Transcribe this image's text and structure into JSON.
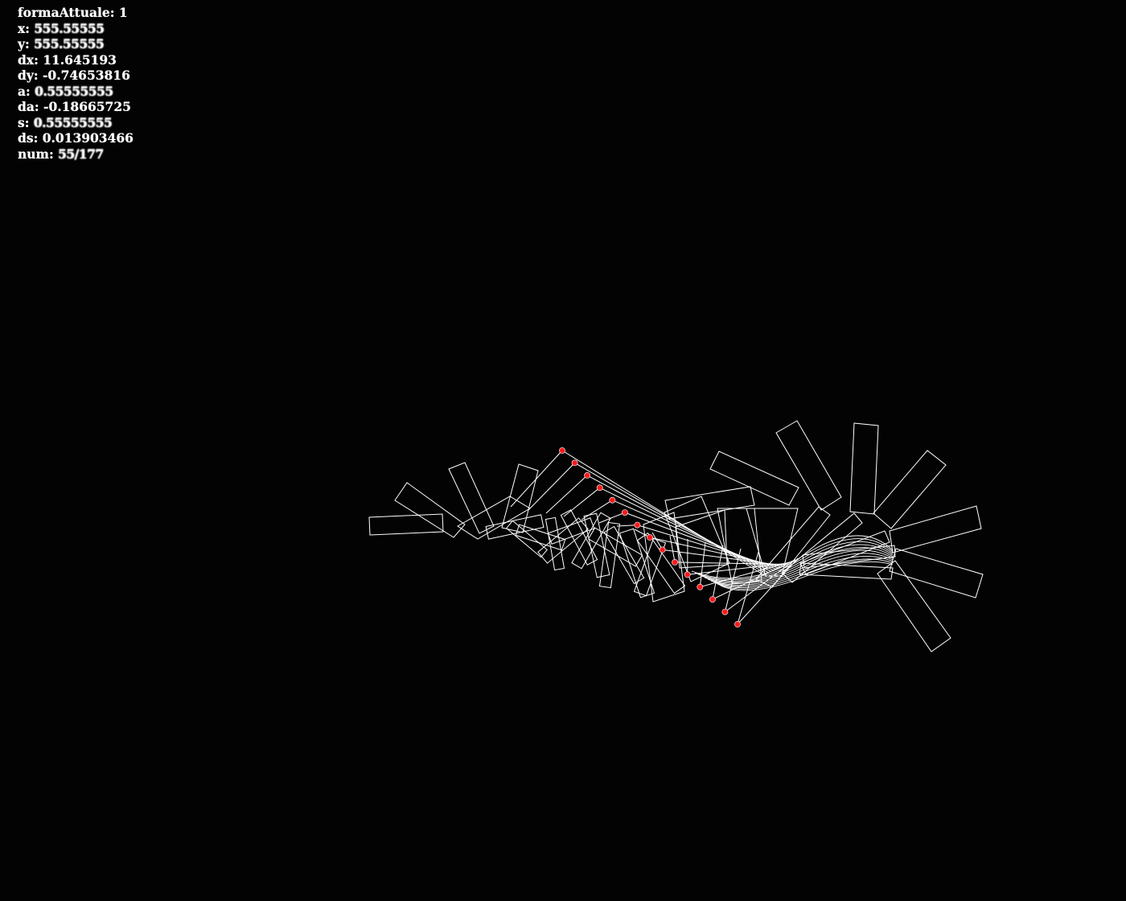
{
  "app": {
    "background_color": "#030303",
    "stroke_color": "#ffffff",
    "marker_color": "#ff1a1a"
  },
  "hud": {
    "formaAttuale": {
      "label": "formaAttuale:",
      "value": "1"
    },
    "x": {
      "label": "x:",
      "value": "555.55555"
    },
    "y": {
      "label": "y:",
      "value": "555.55555"
    },
    "dx": {
      "label": "dx:",
      "value": "11.645193"
    },
    "dy": {
      "label": "dy:",
      "value": "-0.74653816"
    },
    "a": {
      "label": "a:",
      "value": "0.55555555"
    },
    "da": {
      "label": "da:",
      "value": "-0.18665725"
    },
    "s": {
      "label": "s:",
      "value": "0.55555555"
    },
    "ds": {
      "label": "ds:",
      "value": "0.013903466"
    },
    "num": {
      "label": "num:",
      "value": "55/177"
    }
  }
}
